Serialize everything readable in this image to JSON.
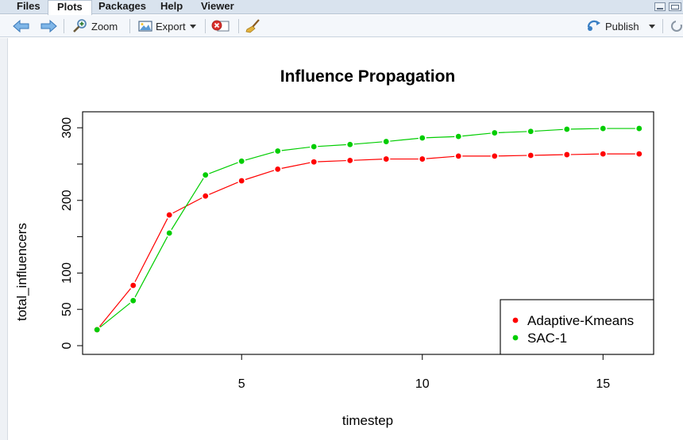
{
  "tabs": [
    {
      "label": "Files",
      "active": false
    },
    {
      "label": "Plots",
      "active": true
    },
    {
      "label": "Packages",
      "active": false
    },
    {
      "label": "Help",
      "active": false
    },
    {
      "label": "Viewer",
      "active": false
    }
  ],
  "toolbar": {
    "zoom_label": "Zoom",
    "export_label": "Export",
    "publish_label": "Publish"
  },
  "icons": {
    "back": "arrow-left-icon",
    "forward": "arrow-right-icon",
    "zoom": "magnifier-icon",
    "export": "image-export-icon",
    "remove": "remove-plot-icon",
    "clear": "broom-icon",
    "publish": "publish-icon",
    "refresh": "refresh-icon"
  },
  "colors": {
    "series_red": "#ff0000",
    "series_green": "#00cd00",
    "tab_bar": "#d9e3ee",
    "toolbar": "#f4f7fb"
  },
  "chart_data": {
    "type": "line",
    "title": "Influence Propagation",
    "xlabel": "timestep",
    "ylabel": "total_influencers",
    "xlim": [
      0.6,
      16.4
    ],
    "ylim": [
      -12,
      322
    ],
    "xticks": [
      5,
      10,
      15
    ],
    "yticks": [
      0,
      50,
      100,
      200,
      300
    ],
    "grid": false,
    "legend_position": "bottom-right",
    "x": [
      1,
      2,
      3,
      4,
      5,
      6,
      7,
      8,
      9,
      10,
      11,
      12,
      13,
      14,
      15,
      16
    ],
    "series": [
      {
        "name": "Adaptive-Kmeans",
        "color": "#ff0000",
        "values": [
          22,
          83,
          180,
          206,
          227,
          243,
          253,
          255,
          257,
          257,
          261,
          261,
          262,
          263,
          264,
          264
        ]
      },
      {
        "name": "SAC-1",
        "color": "#00cd00",
        "values": [
          22,
          62,
          155,
          235,
          254,
          268,
          274,
          277,
          281,
          286,
          288,
          293,
          295,
          298,
          299,
          299
        ]
      }
    ]
  }
}
